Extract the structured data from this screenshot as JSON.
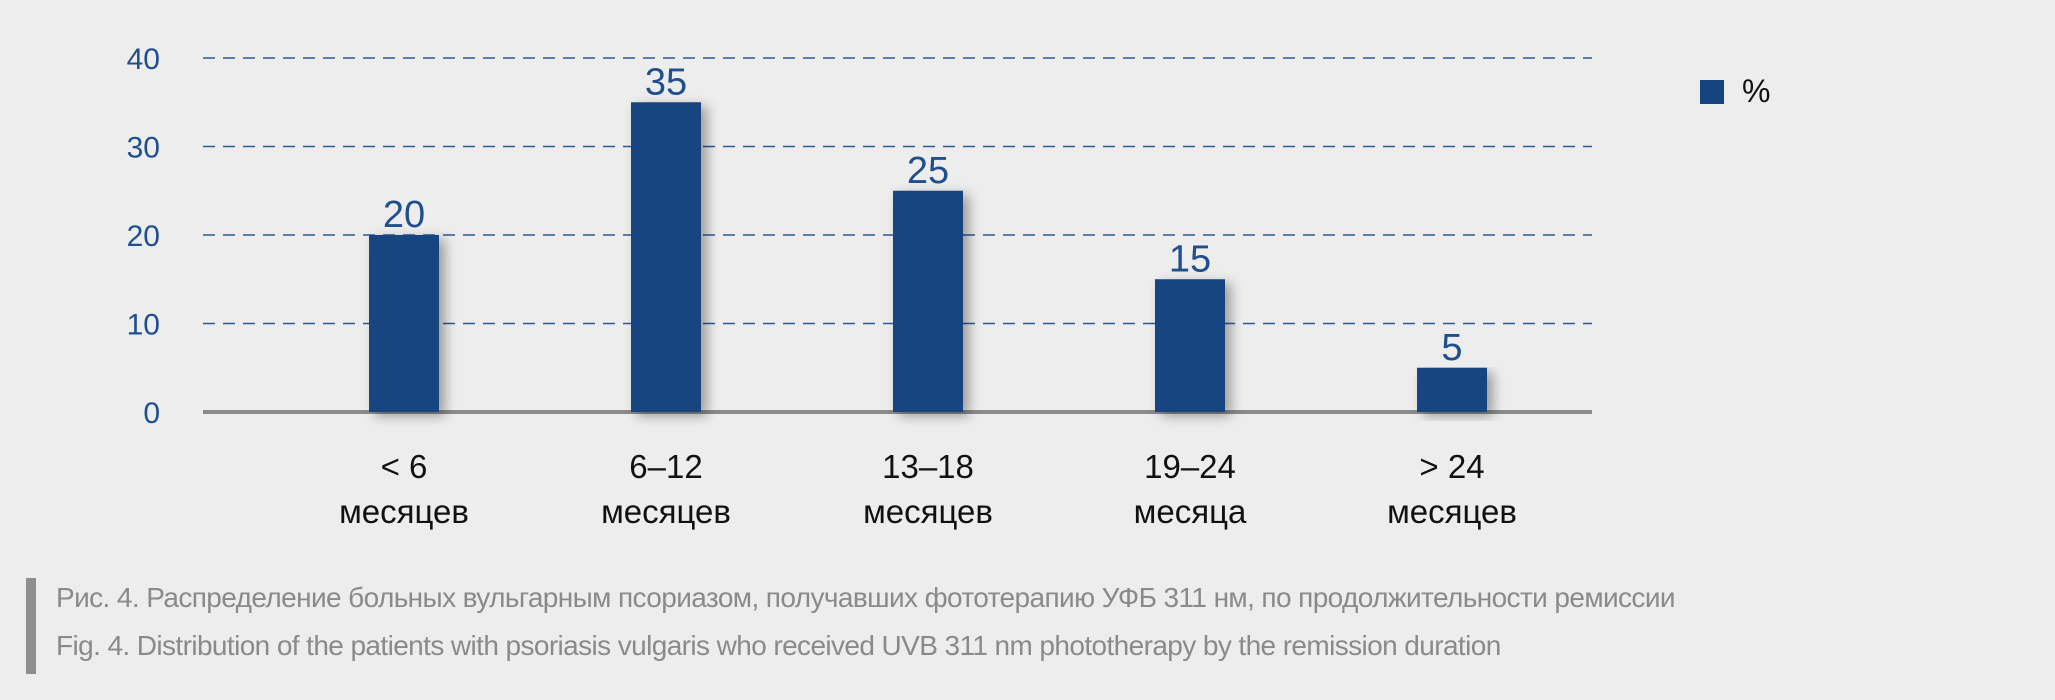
{
  "chart_data": {
    "type": "bar",
    "categories": [
      [
        "< 6",
        "месяцев"
      ],
      [
        "6–12",
        "месяцев"
      ],
      [
        "13–18",
        "месяцев"
      ],
      [
        "19–24",
        "месяца"
      ],
      [
        "> 24",
        "месяцев"
      ]
    ],
    "series": [
      {
        "name": "%",
        "values": [
          20,
          35,
          25,
          15,
          5
        ]
      }
    ],
    "yticks": [
      0,
      10,
      20,
      30,
      40
    ],
    "ylim": [
      0,
      40
    ],
    "grid": "dashed horizontal",
    "legend": "top-right",
    "colors": {
      "bar": "#15447f",
      "axis_text": "#1f4f8d",
      "category_text": "#111111",
      "grid": "#2b5a96",
      "baseline": "#8a8a8a"
    }
  },
  "caption": {
    "ru": "Рис. 4. Распределение больных вульгарным псориазом, получавших фототерапию УФБ 311 нм, по продолжительности ремиссии",
    "en": "Fig. 4. Distribution of the patients with psoriasis vulgaris who received UVB 311 nm phototherapy by the remission duration"
  }
}
